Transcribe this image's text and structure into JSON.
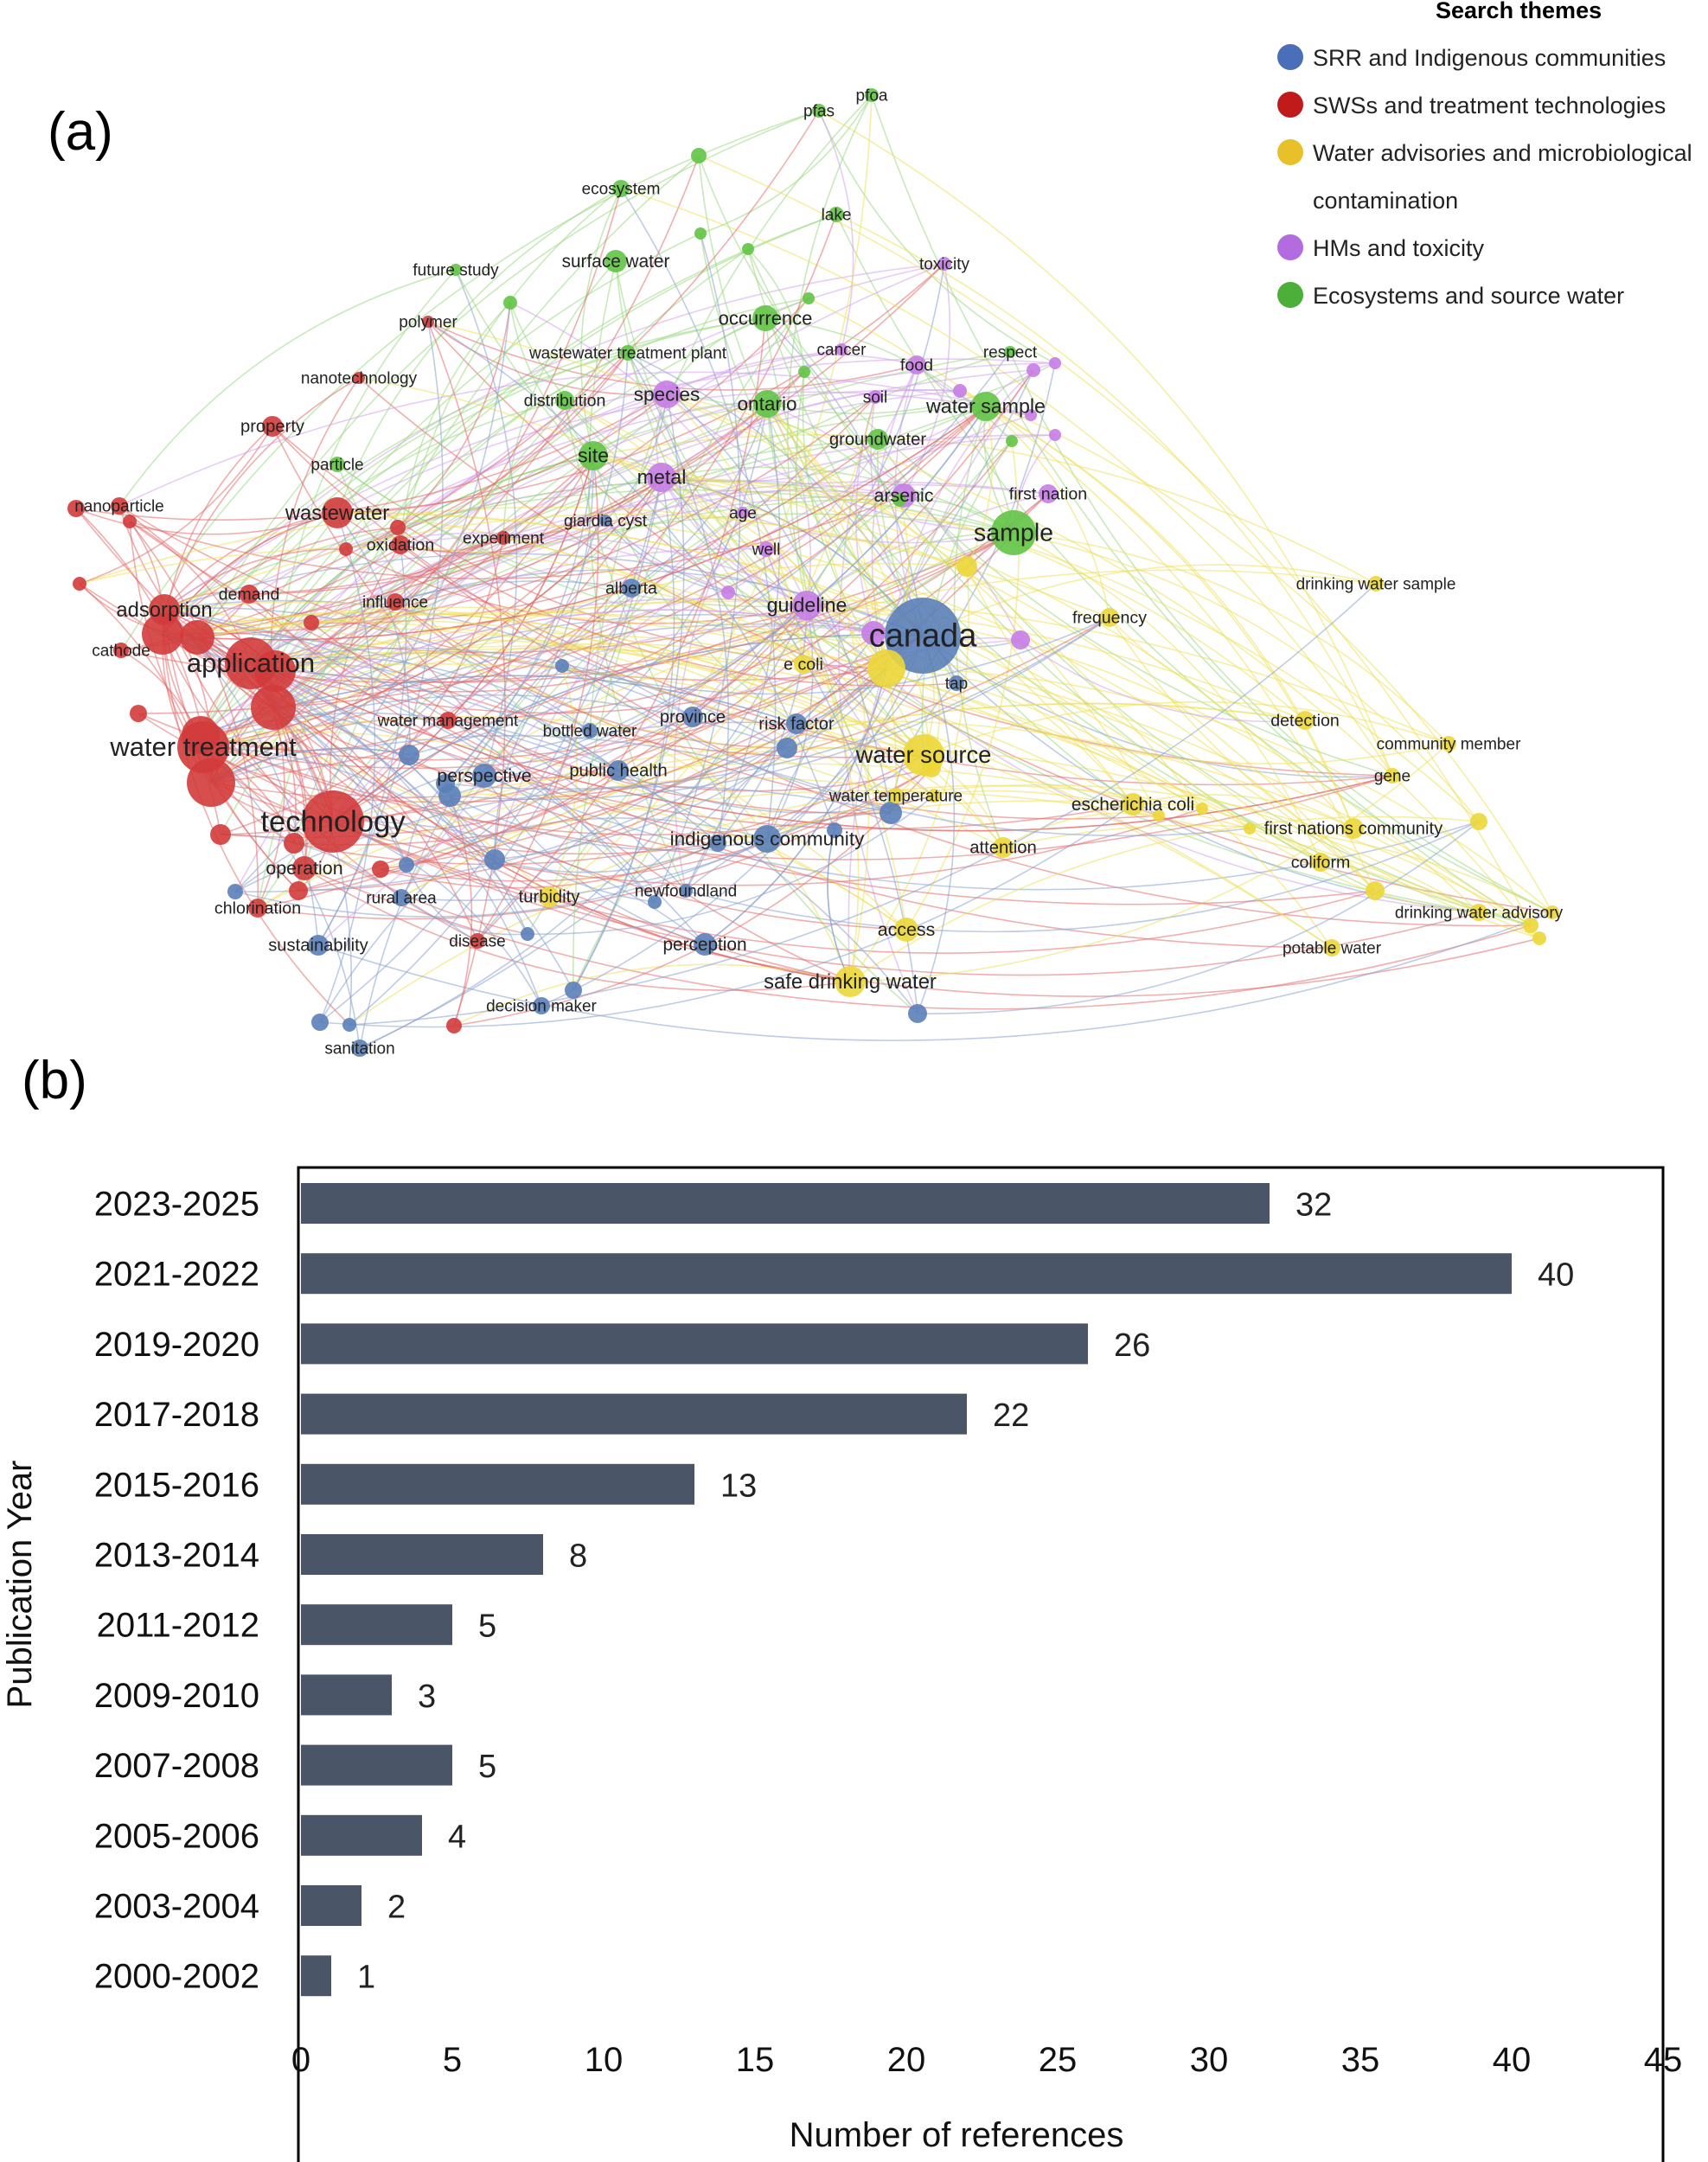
{
  "figure": {
    "panel_a_label": "(a)",
    "panel_b_label": "(b)"
  },
  "network": {
    "legend_title": "Search themes",
    "themes": [
      {
        "id": "blue",
        "label_lines": [
          "SRR and Indigenous communities"
        ],
        "color": "#4a6fb8"
      },
      {
        "id": "red",
        "label_lines": [
          "SWSs and treatment technologies"
        ],
        "color": "#c01a1a"
      },
      {
        "id": "yellow",
        "label_lines": [
          "Water advisories and microbiological",
          "contamination"
        ],
        "color": "#e8c02a"
      },
      {
        "id": "purple",
        "label_lines": [
          "HMs and toxicity"
        ],
        "color": "#b36be0"
      },
      {
        "id": "green",
        "label_lines": [
          "Ecosystems and source water"
        ],
        "color": "#4caf3a"
      }
    ],
    "node_colors": {
      "blue": "#5b7fb8",
      "red": "#d23b3b",
      "yellow": "#ecd73a",
      "purple": "#c77de6",
      "green": "#62c446"
    },
    "edge_colors": {
      "blue": "#8aa3cf",
      "red": "#e36c6c",
      "yellow": "#eee05a",
      "purple": "#d4a3ec",
      "green": "#9ad97f"
    },
    "keywords": [
      {
        "t": "pfas",
        "c": "green",
        "s": 8
      },
      {
        "t": "pfoa",
        "c": "green",
        "s": 8
      },
      {
        "t": "ecosystem",
        "c": "green",
        "s": 10
      },
      {
        "t": "lake",
        "c": "green",
        "s": 9
      },
      {
        "t": "toxicity",
        "c": "purple",
        "s": 8
      },
      {
        "t": "future study",
        "c": "green",
        "s": 7
      },
      {
        "t": "surface water",
        "c": "green",
        "s": 13
      },
      {
        "t": "polymer",
        "c": "red",
        "s": 7
      },
      {
        "t": "occurrence",
        "c": "green",
        "s": 15
      },
      {
        "t": "cancer",
        "c": "purple",
        "s": 7
      },
      {
        "t": "respect",
        "c": "green",
        "s": 7
      },
      {
        "t": "wastewater treatment plant",
        "c": "green",
        "s": 9
      },
      {
        "t": "food",
        "c": "purple",
        "s": 11
      },
      {
        "t": "nanotechnology",
        "c": "red",
        "s": 7
      },
      {
        "t": "distribution",
        "c": "green",
        "s": 11
      },
      {
        "t": "species",
        "c": "purple",
        "s": 16
      },
      {
        "t": "ontario",
        "c": "green",
        "s": 16
      },
      {
        "t": "soil",
        "c": "purple",
        "s": 8
      },
      {
        "t": "water sample",
        "c": "green",
        "s": 17
      },
      {
        "t": "property",
        "c": "red",
        "s": 12
      },
      {
        "t": "groundwater",
        "c": "green",
        "s": 12
      },
      {
        "t": "particle",
        "c": "green",
        "s": 9
      },
      {
        "t": "site",
        "c": "green",
        "s": 17
      },
      {
        "t": "metal",
        "c": "purple",
        "s": 17
      },
      {
        "t": "nanoparticle",
        "c": "red",
        "s": 10
      },
      {
        "t": "arsenic",
        "c": "purple",
        "s": 14
      },
      {
        "t": "first nation",
        "c": "purple",
        "s": 11
      },
      {
        "t": "wastewater",
        "c": "red",
        "s": 18
      },
      {
        "t": "giardia cyst",
        "c": "blue",
        "s": 7
      },
      {
        "t": "age",
        "c": "purple",
        "s": 7
      },
      {
        "t": "sample",
        "c": "green",
        "s": 26
      },
      {
        "t": "experiment",
        "c": "red",
        "s": 8
      },
      {
        "t": "oxidation",
        "c": "red",
        "s": 11
      },
      {
        "t": "well",
        "c": "purple",
        "s": 9
      },
      {
        "t": "drinking water sample",
        "c": "yellow",
        "s": 9
      },
      {
        "t": "demand",
        "c": "red",
        "s": 11
      },
      {
        "t": "alberta",
        "c": "blue",
        "s": 11
      },
      {
        "t": "influence",
        "c": "red",
        "s": 10
      },
      {
        "t": "adsorption",
        "c": "red",
        "s": 18
      },
      {
        "t": "guideline",
        "c": "purple",
        "s": 17
      },
      {
        "t": "frequency",
        "c": "yellow",
        "s": 11
      },
      {
        "t": "canada",
        "c": "blue",
        "s": 44
      },
      {
        "t": "cathode",
        "c": "red",
        "s": 9
      },
      {
        "t": "e coli",
        "c": "yellow",
        "s": 11
      },
      {
        "t": "application",
        "c": "red",
        "s": 30
      },
      {
        "t": "tap",
        "c": "blue",
        "s": 9
      },
      {
        "t": "water management",
        "c": "red",
        "s": 10
      },
      {
        "t": "bottled water",
        "c": "blue",
        "s": 9
      },
      {
        "t": "province",
        "c": "blue",
        "s": 12
      },
      {
        "t": "risk factor",
        "c": "blue",
        "s": 12
      },
      {
        "t": "detection",
        "c": "yellow",
        "s": 11
      },
      {
        "t": "water treatment",
        "c": "red",
        "s": 30
      },
      {
        "t": "community member",
        "c": "yellow",
        "s": 9
      },
      {
        "t": "water source",
        "c": "yellow",
        "s": 24
      },
      {
        "t": "perspective",
        "c": "blue",
        "s": 14
      },
      {
        "t": "public health",
        "c": "blue",
        "s": 12
      },
      {
        "t": "gene",
        "c": "yellow",
        "s": 9
      },
      {
        "t": "water temperature",
        "c": "yellow",
        "s": 9
      },
      {
        "t": "escherichia coli",
        "c": "yellow",
        "s": 13
      },
      {
        "t": "technology",
        "c": "red",
        "s": 36
      },
      {
        "t": "first nations community",
        "c": "yellow",
        "s": 12
      },
      {
        "t": "indigenous community",
        "c": "blue",
        "s": 16
      },
      {
        "t": "attention",
        "c": "yellow",
        "s": 12
      },
      {
        "t": "coliform",
        "c": "yellow",
        "s": 11
      },
      {
        "t": "operation",
        "c": "red",
        "s": 14
      },
      {
        "t": "newfoundland",
        "c": "blue",
        "s": 8
      },
      {
        "t": "turbidity",
        "c": "yellow",
        "s": 12
      },
      {
        "t": "chlorination",
        "c": "red",
        "s": 11
      },
      {
        "t": "rural area",
        "c": "blue",
        "s": 10
      },
      {
        "t": "drinking water advisory",
        "c": "yellow",
        "s": 10
      },
      {
        "t": "access",
        "c": "yellow",
        "s": 14
      },
      {
        "t": "disease",
        "c": "red",
        "s": 9
      },
      {
        "t": "perception",
        "c": "blue",
        "s": 13
      },
      {
        "t": "sustainability",
        "c": "blue",
        "s": 12
      },
      {
        "t": "potable water",
        "c": "yellow",
        "s": 10
      },
      {
        "t": "safe drinking water",
        "c": "yellow",
        "s": 18
      },
      {
        "t": "decision maker",
        "c": "blue",
        "s": 10
      },
      {
        "t": "sanitation",
        "c": "blue",
        "s": 10
      }
    ]
  },
  "chart_data": {
    "type": "bar",
    "orientation": "horizontal",
    "categories": [
      "2023-2025",
      "2021-2022",
      "2019-2020",
      "2017-2018",
      "2015-2016",
      "2013-2014",
      "2011-2012",
      "2009-2010",
      "2007-2008",
      "2005-2006",
      "2003-2004",
      "2000-2002"
    ],
    "values": [
      32,
      40,
      26,
      22,
      13,
      8,
      5,
      3,
      5,
      4,
      2,
      1
    ],
    "title": "",
    "xlabel": "Number of references",
    "ylabel": "Publication Year",
    "xlim": [
      0,
      45
    ],
    "xticks": [
      0,
      5,
      10,
      15,
      20,
      25,
      30,
      35,
      40,
      45
    ],
    "bar_color": "#4a5568",
    "grid": false,
    "legend": "none"
  }
}
